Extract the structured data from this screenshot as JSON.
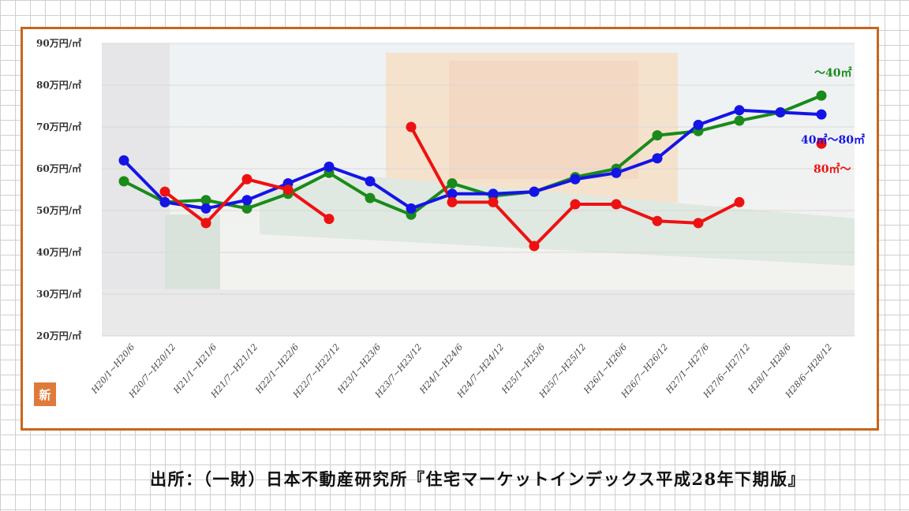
{
  "chart_data": {
    "type": "line",
    "categories": [
      "H20/1~H20/6",
      "H20/7~H20/12",
      "H21/1~H21/6",
      "H21/7~H21/12",
      "H22/1~H22/6",
      "H22/7~H22/12",
      "H23/1~H23/6",
      "H23/7~H23/12",
      "H24/1~H24/6",
      "H24/7~H24/12",
      "H25/1~H25/6",
      "H25/7~H25/12",
      "H26/1~H26/6",
      "H26/7~H26/12",
      "H27/1~H27/6",
      "H27/6~H27/12",
      "H28/1~H28/6",
      "H28/6~H28/12"
    ],
    "y_ticks": [
      "20万円/㎡",
      "30万円/㎡",
      "40万円/㎡",
      "50万円/㎡",
      "60万円/㎡",
      "70万円/㎡",
      "80万円/㎡",
      "90万円/㎡"
    ],
    "ylim": [
      20,
      90
    ],
    "grid": true,
    "series": [
      {
        "name": "～40㎡",
        "color": "#1a8a1a",
        "values": [
          57,
          52,
          52.5,
          50.5,
          54,
          59,
          53,
          49,
          56.5,
          53.5,
          54.5,
          58,
          60,
          68,
          69,
          71.5,
          73.5,
          77.5
        ]
      },
      {
        "name": "40㎡～80㎡",
        "color": "#1414e6",
        "values": [
          62,
          52,
          50.5,
          52.5,
          56.5,
          60.5,
          57,
          50.5,
          54,
          54,
          54.5,
          57.5,
          59,
          62.5,
          70.5,
          74,
          73.5,
          73
        ]
      },
      {
        "name": "80㎡～",
        "color": "#ee1111",
        "values": [
          null,
          54.5,
          47,
          57.5,
          55,
          48,
          null,
          70,
          52,
          52,
          41.5,
          51.5,
          51.5,
          47.5,
          47,
          52,
          null,
          66
        ]
      }
    ],
    "title": "",
    "xlabel": "",
    "ylabel": ""
  },
  "badge": {
    "text": "新",
    "color": "#e07a3a"
  },
  "source_note": "出所：（一財）日本不動産研究所『住宅マーケットインデックス平成28年下期版』",
  "colors": {
    "frame": "#c8661a"
  }
}
